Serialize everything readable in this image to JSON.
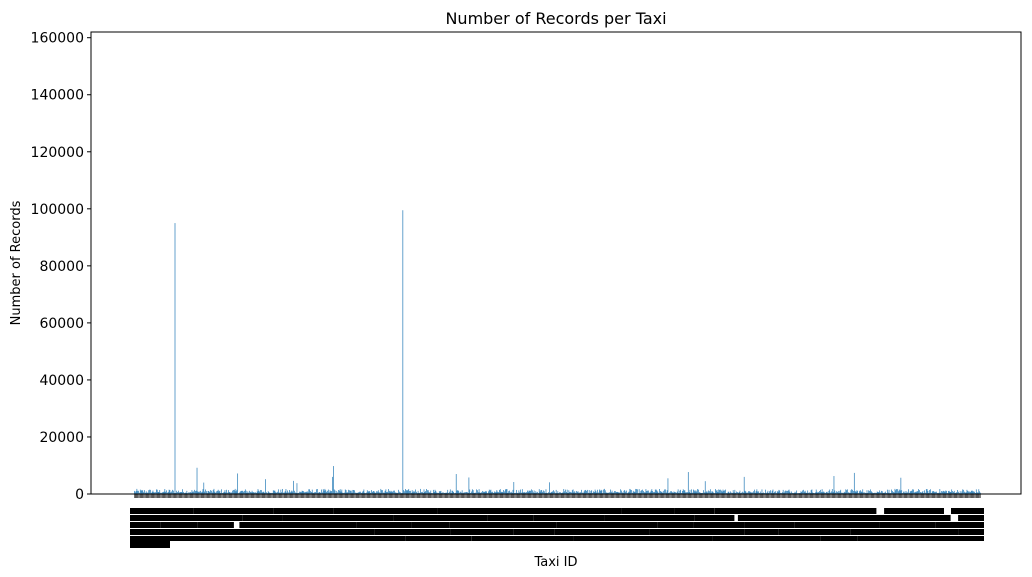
{
  "chart_data": {
    "type": "bar",
    "title": "Number of Records per Taxi",
    "xlabel": "Taxi ID",
    "ylabel": "Number of Records",
    "ylim": [
      0,
      162000
    ],
    "yticks": [
      "0",
      "20000",
      "40000",
      "60000",
      "80000",
      "100000",
      "120000",
      "140000",
      "160000"
    ],
    "bar_color": "#1f77b4",
    "grid": false,
    "legend": "none",
    "x_tick_labels_note": "",
    "num_taxis": 1000,
    "baseline_range": [
      300,
      1800
    ],
    "peaks": [
      {
        "index": 48,
        "value": 95000
      },
      {
        "index": 317,
        "value": 99500
      },
      {
        "index": 74,
        "value": 9200
      },
      {
        "index": 235,
        "value": 9800
      },
      {
        "index": 234,
        "value": 6000
      },
      {
        "index": 82,
        "value": 4000
      },
      {
        "index": 122,
        "value": 7200
      },
      {
        "index": 155,
        "value": 5200
      },
      {
        "index": 188,
        "value": 4600
      },
      {
        "index": 192,
        "value": 3800
      },
      {
        "index": 380,
        "value": 7000
      },
      {
        "index": 395,
        "value": 5800
      },
      {
        "index": 448,
        "value": 4200
      },
      {
        "index": 490,
        "value": 4100
      },
      {
        "index": 630,
        "value": 5500
      },
      {
        "index": 654,
        "value": 7700
      },
      {
        "index": 674,
        "value": 4500
      },
      {
        "index": 720,
        "value": 6000
      },
      {
        "index": 826,
        "value": 6300
      },
      {
        "index": 850,
        "value": 7400
      },
      {
        "index": 905,
        "value": 5700
      }
    ]
  }
}
